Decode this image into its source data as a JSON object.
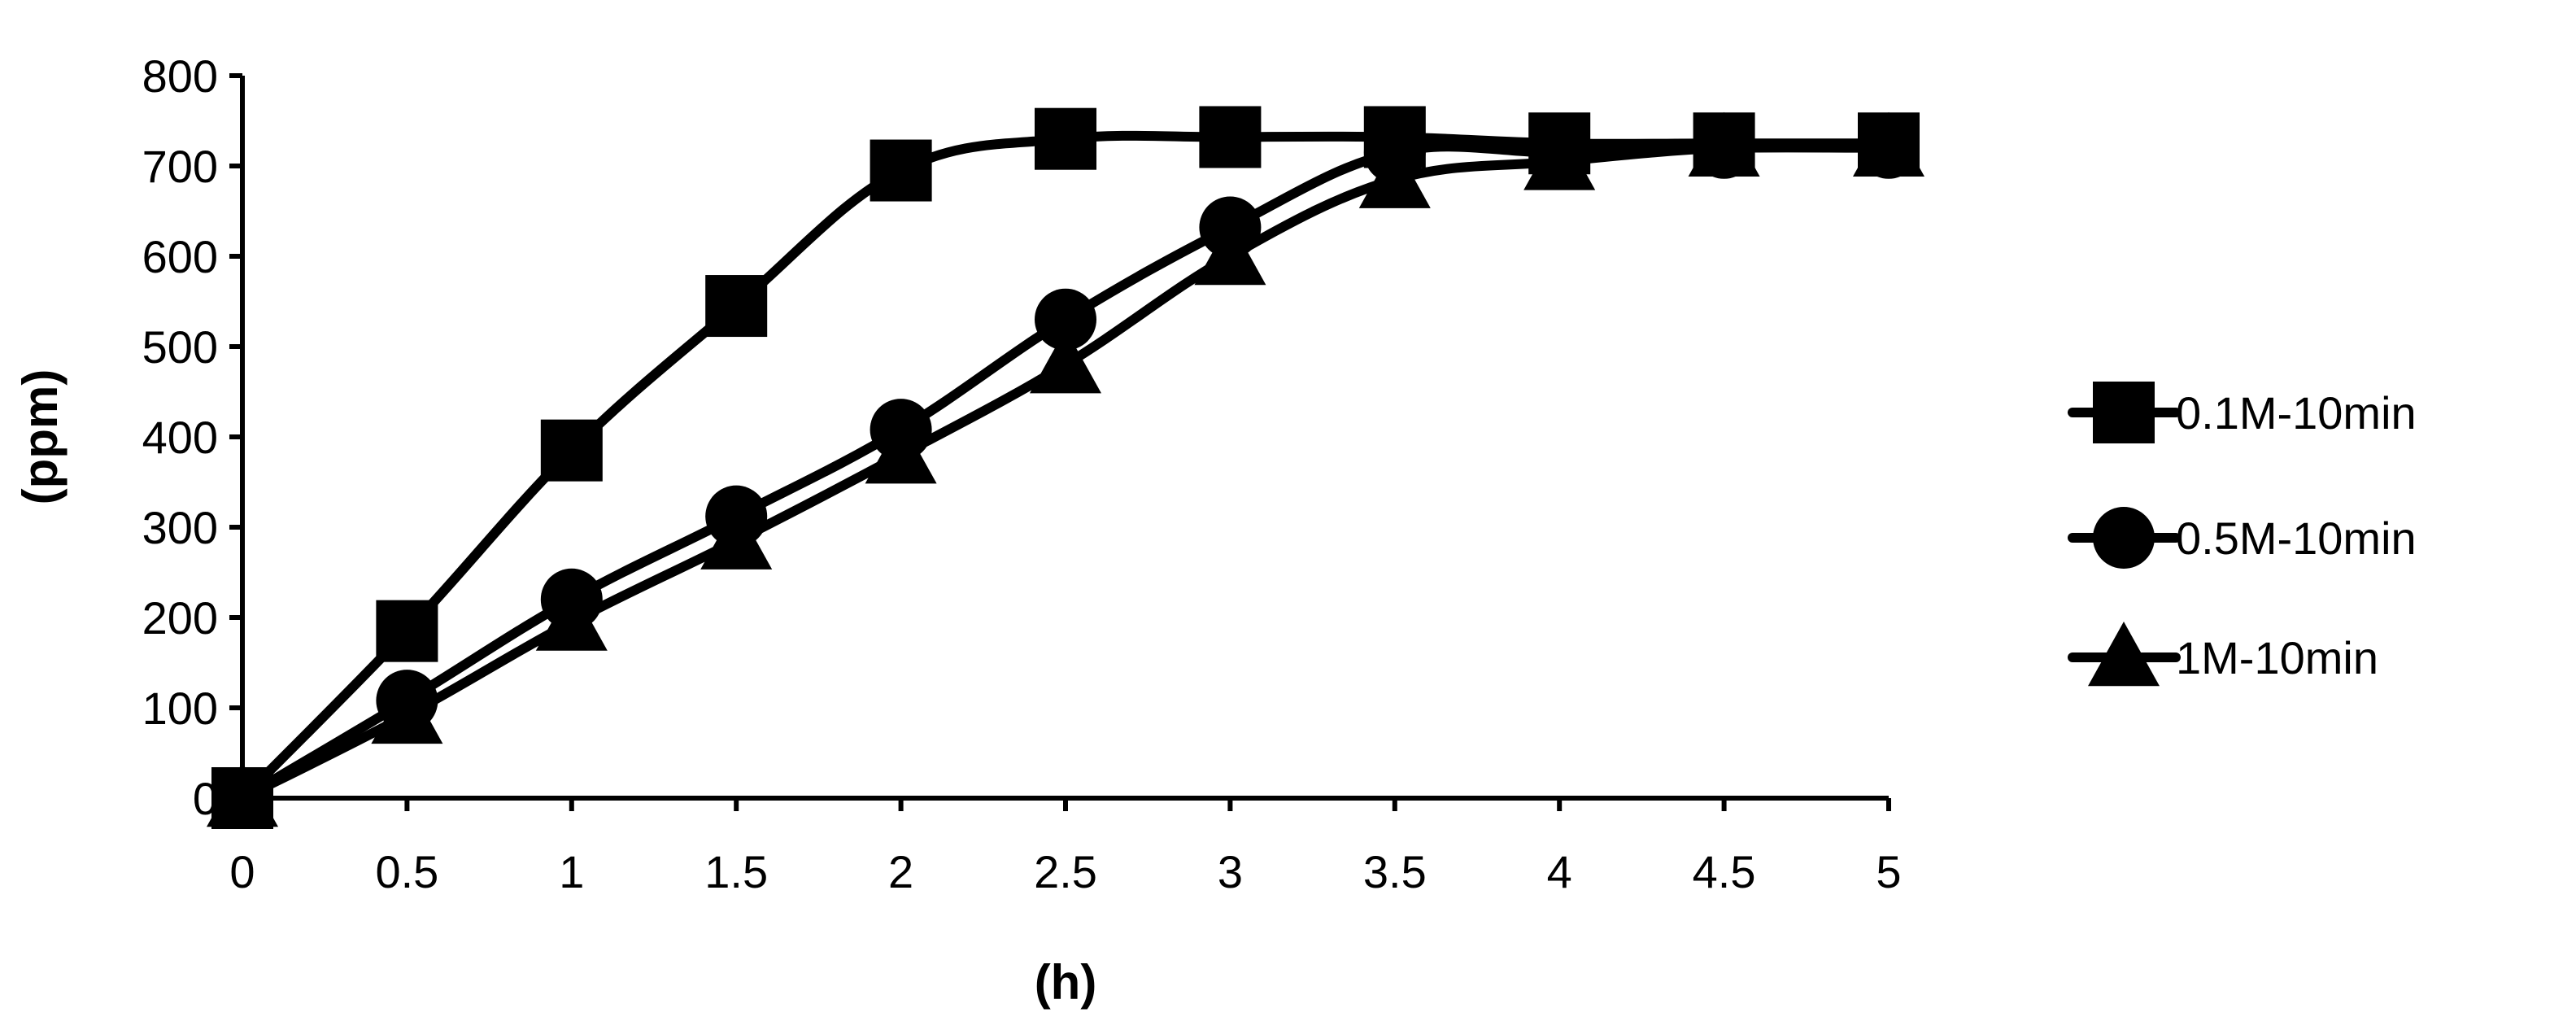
{
  "chart_data": {
    "type": "line",
    "title": "",
    "xlabel": "(h)",
    "ylabel": "(ppm)",
    "xlim": [
      0,
      5
    ],
    "ylim": [
      0,
      800
    ],
    "x_ticks": [
      "0",
      "0.5",
      "1",
      "1.5",
      "2",
      "2.5",
      "3",
      "3.5",
      "4",
      "4.5",
      "5"
    ],
    "y_ticks": [
      "0",
      "100",
      "200",
      "300",
      "400",
      "500",
      "600",
      "700",
      "800"
    ],
    "grid": false,
    "legend_position": "right",
    "smooth": true,
    "x": [
      0,
      0.5,
      1,
      1.5,
      2,
      2.5,
      3,
      3.5,
      4,
      4.5,
      5
    ],
    "series": [
      {
        "name": "0.1M-10min",
        "marker": "square",
        "values": [
          0,
          185,
          385,
          545,
          695,
          730,
          732,
          732,
          725,
          725,
          725
        ]
      },
      {
        "name": "0.5M-10min",
        "marker": "circle",
        "values": [
          0,
          108,
          220,
          312,
          408,
          530,
          632,
          715,
          715,
          720,
          720
        ]
      },
      {
        "name": "1M-10min",
        "marker": "triangle",
        "values": [
          0,
          92,
          195,
          285,
          380,
          480,
          600,
          685,
          705,
          720,
          720
        ]
      }
    ],
    "colors": {
      "line": "#000000",
      "background": "#ffffff"
    }
  }
}
